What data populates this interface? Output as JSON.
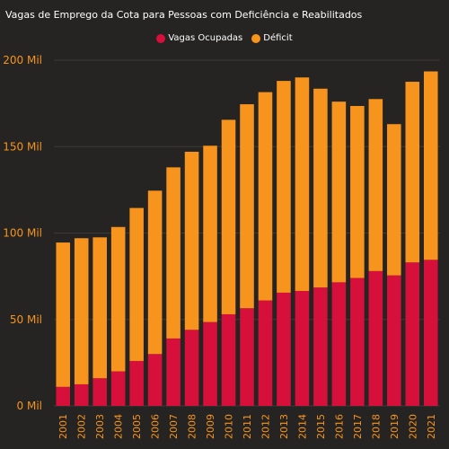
{
  "colors": {
    "background": "#252423",
    "occupied": "#d6103a",
    "deficit": "#f7941d",
    "grid": "#3b3a39",
    "axis_text": "#f7941d",
    "title_text": "#ffffff"
  },
  "chart_data": {
    "type": "bar",
    "stacked": true,
    "title": "Vagas de Emprego da Cota para Pessoas com Deficiência e Reabilitados",
    "legend_position": "top-center",
    "grid": true,
    "ylim": [
      0,
      200000
    ],
    "y_ticks": [
      {
        "value": 0,
        "label": "0 Mil"
      },
      {
        "value": 50000,
        "label": "50 Mil"
      },
      {
        "value": 100000,
        "label": "100 Mil"
      },
      {
        "value": 150000,
        "label": "150 Mil"
      },
      {
        "value": 200000,
        "label": "200 Mil"
      }
    ],
    "categories": [
      "2001",
      "2002",
      "2003",
      "2004",
      "2005",
      "2006",
      "2007",
      "2008",
      "2009",
      "2010",
      "2011",
      "2012",
      "2013",
      "2014",
      "2015",
      "2016",
      "2017",
      "2018",
      "2019",
      "2020",
      "2021"
    ],
    "series": [
      {
        "name": "Vagas Ocupadas",
        "values": [
          11000,
          12500,
          16000,
          20000,
          26000,
          30000,
          39000,
          44000,
          48500,
          53000,
          56500,
          61000,
          65500,
          66500,
          68500,
          71500,
          74000,
          78000,
          75500,
          83000,
          84500
        ]
      },
      {
        "name": "Déficit",
        "values": [
          83500,
          84500,
          81500,
          83500,
          88500,
          94500,
          99000,
          103000,
          102000,
          112500,
          118000,
          120500,
          122500,
          123500,
          115000,
          104500,
          99500,
          99500,
          87500,
          104500,
          109000
        ]
      }
    ]
  }
}
